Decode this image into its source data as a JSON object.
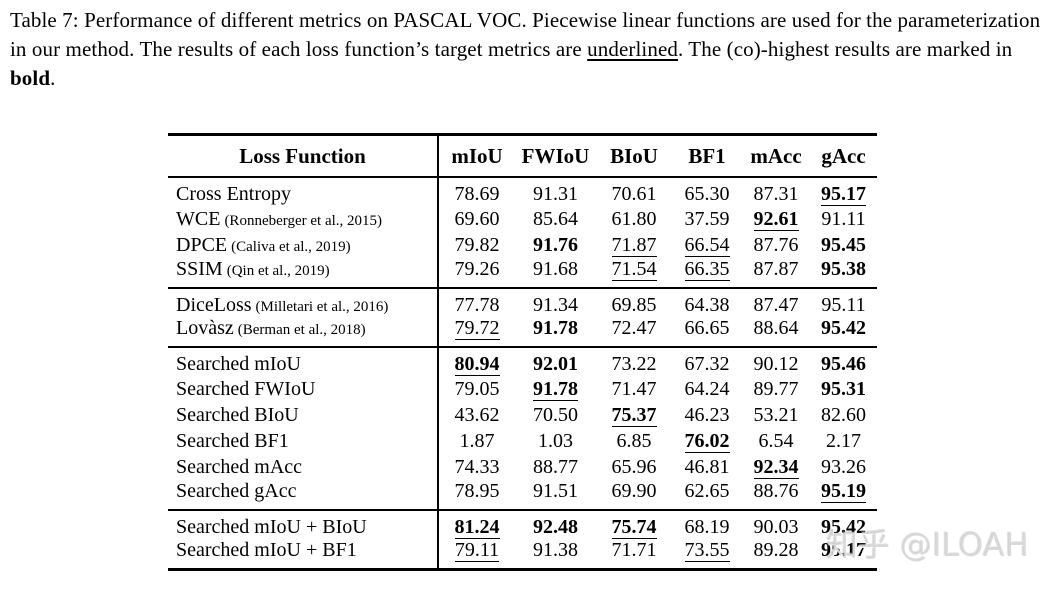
{
  "caption": {
    "text_before_underlined": "Table 7: Performance of different metrics on PASCAL VOC. Piecewise linear functions are used for the parameterization in our method. The results of each loss function’s target metrics are ",
    "underlined_word": "underlined",
    "text_between": ". The (co)-highest results are marked in ",
    "bold_word": "bold",
    "text_after": "."
  },
  "table": {
    "header": [
      "Loss Function",
      "mIoU",
      "FWIoU",
      "BIoU",
      "BF1",
      "mAcc",
      "gAcc"
    ],
    "groups": [
      [
        {
          "label": "Cross Entropy",
          "cite": "",
          "cells": [
            {
              "v": "78.69"
            },
            {
              "v": "91.31"
            },
            {
              "v": "70.61"
            },
            {
              "v": "65.30"
            },
            {
              "v": "87.31"
            },
            {
              "v": "95.17",
              "b": true,
              "u": true
            }
          ]
        },
        {
          "label": "WCE",
          "cite": "(Ronneberger et al., 2015)",
          "cells": [
            {
              "v": "69.60"
            },
            {
              "v": "85.64"
            },
            {
              "v": "61.80"
            },
            {
              "v": "37.59"
            },
            {
              "v": "92.61",
              "b": true,
              "u": true
            },
            {
              "v": "91.11"
            }
          ]
        },
        {
          "label": "DPCE",
          "cite": "(Caliva et al., 2019)",
          "cells": [
            {
              "v": "79.82"
            },
            {
              "v": "91.76",
              "b": true
            },
            {
              "v": "71.87",
              "u": true
            },
            {
              "v": "66.54",
              "u": true
            },
            {
              "v": "87.76"
            },
            {
              "v": "95.45",
              "b": true
            }
          ]
        },
        {
          "label": "SSIM",
          "cite": "(Qin et al., 2019)",
          "cells": [
            {
              "v": "79.26"
            },
            {
              "v": "91.68"
            },
            {
              "v": "71.54",
              "u": true
            },
            {
              "v": "66.35",
              "u": true
            },
            {
              "v": "87.87"
            },
            {
              "v": "95.38",
              "b": true
            }
          ]
        }
      ],
      [
        {
          "label": "DiceLoss",
          "cite": "(Milletari et al., 2016)",
          "cells": [
            {
              "v": "77.78"
            },
            {
              "v": "91.34"
            },
            {
              "v": "69.85"
            },
            {
              "v": "64.38"
            },
            {
              "v": "87.47"
            },
            {
              "v": "95.11"
            }
          ]
        },
        {
          "label": "Lovàsz",
          "cite": "(Berman et al., 2018)",
          "cells": [
            {
              "v": "79.72",
              "u": true
            },
            {
              "v": "91.78",
              "b": true
            },
            {
              "v": "72.47"
            },
            {
              "v": "66.65"
            },
            {
              "v": "88.64"
            },
            {
              "v": "95.42",
              "b": true
            }
          ]
        }
      ],
      [
        {
          "label": "Searched mIoU",
          "cite": "",
          "cells": [
            {
              "v": "80.94",
              "b": true,
              "u": true
            },
            {
              "v": "92.01",
              "b": true
            },
            {
              "v": "73.22"
            },
            {
              "v": "67.32"
            },
            {
              "v": "90.12"
            },
            {
              "v": "95.46",
              "b": true
            }
          ]
        },
        {
          "label": "Searched FWIoU",
          "cite": "",
          "cells": [
            {
              "v": "79.05"
            },
            {
              "v": "91.78",
              "b": true,
              "u": true
            },
            {
              "v": "71.47"
            },
            {
              "v": "64.24"
            },
            {
              "v": "89.77"
            },
            {
              "v": "95.31",
              "b": true
            }
          ]
        },
        {
          "label": "Searched BIoU",
          "cite": "",
          "cells": [
            {
              "v": "43.62"
            },
            {
              "v": "70.50"
            },
            {
              "v": "75.37",
              "b": true,
              "u": true
            },
            {
              "v": "46.23"
            },
            {
              "v": "53.21"
            },
            {
              "v": "82.60"
            }
          ]
        },
        {
          "label": "Searched BF1",
          "cite": "",
          "cells": [
            {
              "v": "1.87"
            },
            {
              "v": "1.03"
            },
            {
              "v": "6.85"
            },
            {
              "v": "76.02",
              "b": true,
              "u": true
            },
            {
              "v": "6.54"
            },
            {
              "v": "2.17"
            }
          ]
        },
        {
          "label": "Searched mAcc",
          "cite": "",
          "cells": [
            {
              "v": "74.33"
            },
            {
              "v": "88.77"
            },
            {
              "v": "65.96"
            },
            {
              "v": "46.81"
            },
            {
              "v": "92.34",
              "b": true,
              "u": true
            },
            {
              "v": "93.26"
            }
          ]
        },
        {
          "label": "Searched gAcc",
          "cite": "",
          "cells": [
            {
              "v": "78.95"
            },
            {
              "v": "91.51"
            },
            {
              "v": "69.90"
            },
            {
              "v": "62.65"
            },
            {
              "v": "88.76"
            },
            {
              "v": "95.19",
              "b": true,
              "u": true
            }
          ]
        }
      ],
      [
        {
          "label": "Searched mIoU + BIoU",
          "cite": "",
          "cells": [
            {
              "v": "81.24",
              "b": true,
              "u": true
            },
            {
              "v": "92.48",
              "b": true
            },
            {
              "v": "75.74",
              "b": true,
              "u": true
            },
            {
              "v": "68.19"
            },
            {
              "v": "90.03"
            },
            {
              "v": "95.42",
              "b": true
            }
          ]
        },
        {
          "label": "Searched mIoU + BF1",
          "cite": "",
          "cells": [
            {
              "v": "79.11",
              "u": true
            },
            {
              "v": "91.38"
            },
            {
              "v": "71.71"
            },
            {
              "v": "73.55",
              "u": true
            },
            {
              "v": "89.28"
            },
            {
              "v": "95.17",
              "b": true
            }
          ]
        }
      ]
    ]
  },
  "watermark": {
    "text": "知乎 @ILOAH"
  }
}
